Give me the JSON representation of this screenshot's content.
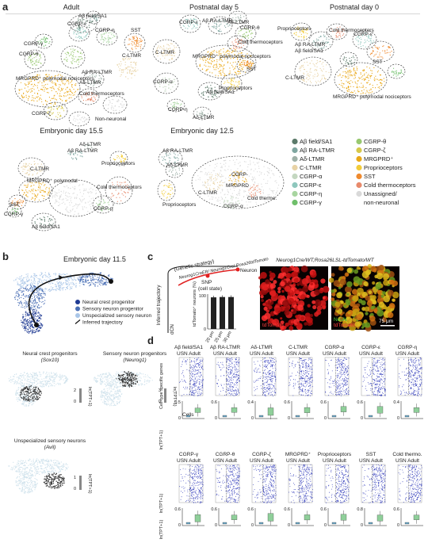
{
  "panels": {
    "a": "a",
    "b": "b",
    "c": "c",
    "d": "d"
  },
  "panel_a": {
    "adult": {
      "title": "Adult",
      "labels": [
        "Aβ field/SA1",
        "CGRP-ε",
        "CGRP-η",
        "SST",
        "CGRP-θ",
        "CGRP-γ",
        "C-LTMR",
        "MRGPRD⁺ polymodal nociceptors",
        "Aβ RA-LTMR",
        "Aδ-LTMR",
        "Cold thermoceptors",
        "CGRP-ζ",
        "Non-neuronal"
      ]
    },
    "p5": {
      "title": "Postnatal day 5",
      "labels": [
        "CGRP-ε",
        "Aβ RA-LTMR",
        "Aδ-LTMR",
        "CGRP-θ",
        "C-LTMR",
        "MRGPRD⁺ polymodal nociceptors",
        "Cold thermoceptors",
        "SST",
        "CGRP-α",
        "Aβ field/SA1",
        "Proprioceptors",
        "CGRP-η",
        "Aδ-LTMR"
      ]
    },
    "p0": {
      "title": "Postnatal day 0",
      "labels": [
        "Proprioceptors",
        "Aβ RA-LTMR",
        "Aβ field/SA1",
        "Cold thermoceptors",
        "CGRP-ε",
        "SST",
        "C-LTMR",
        "MRGPRD⁺ polymodal nociceptors"
      ]
    },
    "e15": {
      "title": "Embryonic day 15.5",
      "labels": [
        "Aδ-LTMR",
        "Aβ RA-LTMR",
        "Proprioceptors",
        "C-LTMR",
        "MRGPRD⁺ polymodal",
        "SST",
        "CGRP-γ",
        "Cold thermoceptors",
        "CGRP-η",
        "Aβ field/SA1"
      ]
    },
    "e12": {
      "title": "Embryonic day 12.5",
      "labels": [
        "Aβ RA-LTMR",
        "Aδ-LTMR",
        "Proprioceptors",
        "CGRP-",
        "C-LTMR",
        "MRGPRD",
        "Cold thermo.",
        "CGRP-α"
      ]
    },
    "legend": [
      {
        "label": "Aβ field/SA1",
        "color": "#5b7a6a"
      },
      {
        "label": "Aβ RA-LTMR",
        "color": "#7fa6a0"
      },
      {
        "label": "Aδ-LTMR",
        "color": "#9fb1a8"
      },
      {
        "label": "C-LTMR",
        "color": "#e8d3a6"
      },
      {
        "label": "CGRP-α",
        "color": "#c4d7c0"
      },
      {
        "label": "CGRP-ε",
        "color": "#8ec7bd"
      },
      {
        "label": "CGRP-η",
        "color": "#a8d5a0"
      },
      {
        "label": "CGRP-γ",
        "color": "#6fbf6a"
      },
      {
        "label": "CGRP-θ",
        "color": "#98c870"
      },
      {
        "label": "CGRP-ζ",
        "color": "#d6c84a"
      },
      {
        "label": "MRGPRD⁺",
        "color": "#e9a818"
      },
      {
        "label": "Proprioceptors",
        "color": "#f2cc3a"
      },
      {
        "label": "SST",
        "color": "#ef8a2e"
      },
      {
        "label": "Cold thermoceptors",
        "color": "#e88a6c"
      },
      {
        "label": "Unassigned/",
        "color": "#d9d9d9"
      },
      {
        "label": "non-neuronal",
        "color": ""
      }
    ]
  },
  "panel_b": {
    "title": "Embryonic day 11.5",
    "legend": [
      {
        "label": "Neural crest progenitor",
        "color": "#1f3a93"
      },
      {
        "label": "Sensory neuron progenitor",
        "color": "#4a6fb5"
      },
      {
        "label": "Unspecialized sensory neuron",
        "color": "#a9c6e8"
      },
      {
        "label": "Inferred trajectory",
        "color": "#111111"
      }
    ],
    "maps": [
      {
        "title": "Neural crest progenitors",
        "gene": "(Sox10)"
      },
      {
        "title": "Sensory neuron progenitors",
        "gene": "(Neurog1)"
      },
      {
        "title": "Unspecialized sensory neurons",
        "gene": "(Avil)"
      }
    ],
    "scale_label": "ln(TPT+1)",
    "scales": [
      [
        "2",
        "0"
      ],
      [
        "3",
        "0"
      ],
      [
        "1",
        "0"
      ]
    ]
  },
  "panel_c": {
    "trajectory_label": "Inferred trajectory",
    "strategy": "(Genetic strategy)",
    "genes": "Neurog1CreER/ Neurog1Cre/ Rosa26tdTomato",
    "snp": "SNP",
    "cell_state": "(cell state)",
    "neuron": "Neuron",
    "dcn": "dCN",
    "bar_ylabel": "tdTomato⁺ neurons (%)",
    "bar_ylim": [
      0,
      100
    ],
    "bar_tick": "100",
    "bar_tick0": "0",
    "bar_categories": [
      "20 μm",
      "25 μm",
      "30 μm"
    ],
    "bar_values": [
      95,
      96,
      96
    ],
    "micro_title": "Neurog1Cre/WT;Rosa26LSL-tdTomato/WT",
    "micro_left_label": "tdTomato",
    "micro_right_label1": "NeuN",
    "micro_right_label2": "tdTomato",
    "scale_bar": "75 μm"
  },
  "panel_d": {
    "top_headers": [
      {
        "name": "Aβ field/SA1",
        "sub": "USN Adult"
      },
      {
        "name": "Aβ RA-LTMR",
        "sub": "USN Adult"
      },
      {
        "name": "Aδ-LTMR",
        "sub": "USN Adult"
      },
      {
        "name": "C-LTMR",
        "sub": "USN Adult"
      },
      {
        "name": "CGRP-α",
        "sub": "USN Adult"
      },
      {
        "name": "CGRP-ε",
        "sub": "USN Adult"
      },
      {
        "name": "CGRP-η",
        "sub": "USN Adult"
      }
    ],
    "bottom_headers": [
      {
        "name": "CGRP-γ",
        "sub": "USN Adult"
      },
      {
        "name": "CGRP-θ",
        "sub": "USN Adult"
      },
      {
        "name": "CGRP-ζ",
        "sub": "USN Adult"
      },
      {
        "name": "MRGPRD⁺",
        "sub": "USN Adult"
      },
      {
        "name": "Proprioceptors",
        "sub": "USN Adult"
      },
      {
        "name": "SST",
        "sub": "USN Adult"
      },
      {
        "name": "Cold thermo.",
        "sub": "USN Adult"
      }
    ],
    "row_label": "Cell-type specific genes",
    "cells_label": "Cells",
    "y_label": "ln(TPT+1)",
    "top_ymax": [
      "0.5",
      "0.6",
      "0.4",
      "0.6",
      "0.6",
      "0.6",
      "0.4"
    ],
    "bottom_ymax": [
      "0.6",
      "0.6",
      "0.6",
      "0.6",
      "0.6",
      "0.8",
      "0.6"
    ],
    "y0": "0"
  }
}
